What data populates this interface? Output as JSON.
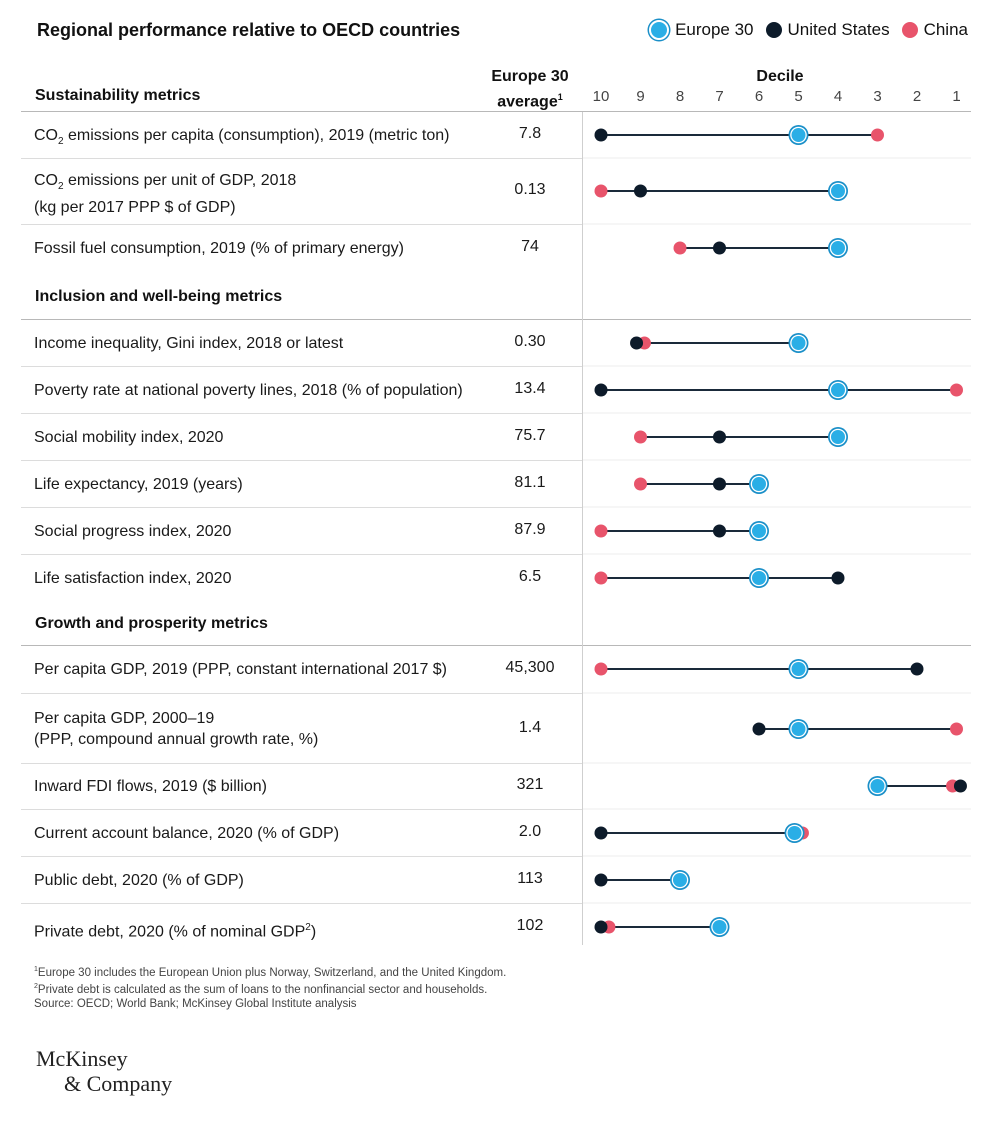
{
  "header": {
    "title": "Regional performance relative to OECD countries",
    "legend": [
      {
        "name": "Europe 30",
        "key": "eu"
      },
      {
        "name": "United States",
        "key": "us"
      },
      {
        "name": "China",
        "key": "cn"
      }
    ],
    "avg_head_line1": "Europe 30",
    "avg_head_line2": "average",
    "avg_head_sup": "1",
    "decile_head": "Decile"
  },
  "colors": {
    "eu": "#2aaee6",
    "eu_ring": "#1a8fc8",
    "us": "#0d1b2a",
    "cn": "#e8546b",
    "line": "#1a2a3a"
  },
  "chart_data": {
    "type": "dot-range",
    "title": "Regional performance relative to OECD countries",
    "x_axis_label": "Decile",
    "x_ticks": [
      10,
      9,
      8,
      7,
      6,
      5,
      4,
      3,
      2,
      1
    ],
    "xlim": [
      10,
      1
    ],
    "series": [
      "Europe 30",
      "United States",
      "China"
    ],
    "sections": [
      {
        "title": "Sustainability metrics",
        "rows": [
          {
            "pre": "CO",
            "sub": "2",
            "post": " emissions per capita (consumption), 2019 (metric ton)",
            "line2": "",
            "avg": "7.8",
            "eu": 5,
            "us": 10,
            "cn": 3
          },
          {
            "pre": "CO",
            "sub": "2",
            "post": " emissions per unit of GDP, 2018",
            "line2": "(kg per 2017 PPP $ of GDP)",
            "avg": "0.13",
            "eu": 4,
            "us": 9,
            "cn": 10
          },
          {
            "pre": " Fossil fuel consumption, 2019 (% of primary energy)",
            "sub": "",
            "post": "",
            "line2": "",
            "avg": "74",
            "eu": 4,
            "us": 7,
            "cn": 8
          }
        ]
      },
      {
        "title": "Inclusion and well-being metrics",
        "rows": [
          {
            "pre": "Income inequality, Gini index, 2018 or latest",
            "sub": "",
            "post": "",
            "line2": "",
            "avg": "0.30",
            "eu": 5,
            "us": 9.1,
            "cn": 8.9
          },
          {
            "pre": "Poverty rate at national poverty lines, 2018 (% of population)",
            "sub": "",
            "post": "",
            "line2": "",
            "avg": "13.4",
            "eu": 4,
            "us": 10,
            "cn": 1
          },
          {
            "pre": "Social mobility index, 2020",
            "sub": "",
            "post": "",
            "line2": "",
            "avg": "75.7",
            "eu": 4,
            "us": 7,
            "cn": 9
          },
          {
            "pre": "Life expectancy, 2019 (years)",
            "sub": "",
            "post": "",
            "line2": "",
            "avg": "81.1",
            "eu": 6,
            "us": 7,
            "cn": 9
          },
          {
            "pre": "Social progress index, 2020",
            "sub": "",
            "post": "",
            "line2": "",
            "avg": "87.9",
            "eu": 6,
            "us": 7,
            "cn": 10
          },
          {
            "pre": "Life satisfaction index, 2020",
            "sub": "",
            "post": "",
            "line2": "",
            "avg": "6.5",
            "eu": 6,
            "us": 4,
            "cn": 10
          }
        ]
      },
      {
        "title": "Growth and prosperity metrics",
        "rows": [
          {
            "pre": "Per capita GDP, 2019 (PPP, constant international 2017 $)",
            "sub": "",
            "post": "",
            "line2": "",
            "avg": "45,300",
            "eu": 5,
            "us": 2,
            "cn": 10
          },
          {
            "pre": "Per capita GDP, 2000–19",
            "sub": "",
            "post": "",
            "line2": "(PPP, compound annual growth rate, %)",
            "avg": "1.4",
            "eu": 5,
            "us": 6,
            "cn": 1
          },
          {
            "pre": "Inward FDI flows, 2019 ($ billion)",
            "sub": "",
            "post": "",
            "line2": "",
            "avg": "321",
            "eu": 3,
            "us": 0.9,
            "cn": 1.1
          },
          {
            "pre": "Current account balance, 2020 (% of GDP)",
            "sub": "",
            "post": "",
            "line2": "",
            "avg": "2.0",
            "eu": 5.1,
            "us": 10,
            "cn": 4.9
          },
          {
            "pre": "Public debt, 2020 (% of GDP)",
            "sub": "",
            "post": "",
            "line2": "",
            "avg": "113",
            "eu": 8,
            "us": 10,
            "cn": null
          },
          {
            "pre": "Private debt, 2020 (% of nominal GDP",
            "sub": "",
            "post": "",
            "sup": "2",
            "post2": ")",
            "line2": "",
            "avg": "102",
            "eu": 7,
            "us": 10,
            "cn": 9.8
          }
        ]
      }
    ]
  },
  "footnotes": {
    "f1_sup": "1",
    "f1": "Europe 30 includes the European Union plus Norway, Switzerland, and the United Kingdom.",
    "f2_sup": "2",
    "f2": "Private debt is calculated as the sum of loans to the nonfinancial sector and households.",
    "source": "Source: OECD; World Bank; McKinsey Global Institute analysis"
  },
  "logo": {
    "line1": "McKinsey",
    "line2": "& Company"
  }
}
